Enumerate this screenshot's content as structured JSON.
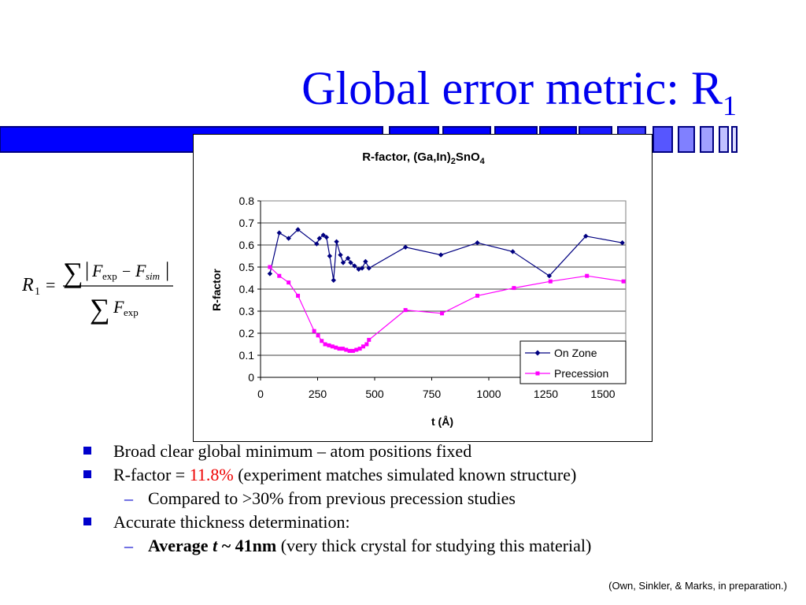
{
  "slide": {
    "title_main": "Global error metric: R",
    "title_sub": "1"
  },
  "formula": {
    "lhs_symbol": "R",
    "lhs_sub": "1",
    "equals": "=",
    "sum_symbol": "∑",
    "f_symbol": "F",
    "sub_exp": "exp",
    "sub_sim": "sim",
    "minus": "−",
    "bar": "|"
  },
  "chart_data": {
    "type": "line",
    "title_main": "R-factor, (Ga,In)",
    "title_sub1": "2",
    "title_mid": "SnO",
    "title_sub2": "4",
    "xlabel": "t (Å)",
    "ylabel": "R-factor",
    "xlim": [
      0,
      1600
    ],
    "ylim": [
      0,
      0.8
    ],
    "xticks": [
      0,
      250,
      500,
      750,
      1000,
      1250,
      1500
    ],
    "yticks": [
      0,
      0.1,
      0.2,
      0.3,
      0.4,
      0.5,
      0.6,
      0.7,
      0.8
    ],
    "grid": "horizontal",
    "legend": "bottom-right",
    "series": [
      {
        "name": "On Zone",
        "color": "#000080",
        "marker": "diamond",
        "points": [
          [
            41,
            0.47
          ],
          [
            82,
            0.655
          ],
          [
            123,
            0.63
          ],
          [
            164,
            0.67
          ],
          [
            246,
            0.605
          ],
          [
            258,
            0.63
          ],
          [
            275,
            0.645
          ],
          [
            289,
            0.635
          ],
          [
            303,
            0.55
          ],
          [
            320,
            0.44
          ],
          [
            333,
            0.615
          ],
          [
            350,
            0.555
          ],
          [
            362,
            0.52
          ],
          [
            383,
            0.54
          ],
          [
            395,
            0.52
          ],
          [
            412,
            0.505
          ],
          [
            430,
            0.49
          ],
          [
            445,
            0.495
          ],
          [
            460,
            0.525
          ],
          [
            475,
            0.495
          ],
          [
            635,
            0.59
          ],
          [
            790,
            0.555
          ],
          [
            950,
            0.61
          ],
          [
            1105,
            0.57
          ],
          [
            1265,
            0.46
          ],
          [
            1425,
            0.64
          ],
          [
            1585,
            0.61
          ]
        ]
      },
      {
        "name": "Precession",
        "color": "#ff00ff",
        "marker": "square",
        "points": [
          [
            41,
            0.5
          ],
          [
            82,
            0.46
          ],
          [
            123,
            0.43
          ],
          [
            164,
            0.37
          ],
          [
            235,
            0.21
          ],
          [
            252,
            0.19
          ],
          [
            268,
            0.165
          ],
          [
            283,
            0.15
          ],
          [
            300,
            0.145
          ],
          [
            315,
            0.14
          ],
          [
            330,
            0.135
          ],
          [
            345,
            0.13
          ],
          [
            360,
            0.13
          ],
          [
            375,
            0.125
          ],
          [
            390,
            0.12
          ],
          [
            405,
            0.12
          ],
          [
            420,
            0.125
          ],
          [
            435,
            0.13
          ],
          [
            450,
            0.14
          ],
          [
            465,
            0.15
          ],
          [
            475,
            0.17
          ],
          [
            635,
            0.305
          ],
          [
            795,
            0.29
          ],
          [
            950,
            0.37
          ],
          [
            1110,
            0.405
          ],
          [
            1270,
            0.435
          ],
          [
            1430,
            0.46
          ],
          [
            1590,
            0.435
          ]
        ]
      }
    ]
  },
  "bullets": [
    {
      "text": "Broad clear global minimum – atom positions fixed"
    },
    {
      "prefix": "R-factor = ",
      "highlight": "11.8%",
      "suffix": " (experiment matches simulated known structure)",
      "highlight_color": "#ee0000"
    },
    {
      "text": "Compared to >30% from previous precession studies"
    },
    {
      "text": "Accurate thickness determination:"
    },
    {
      "bold_prefix": "Average ",
      "bold_var": "t",
      "bold_suffix": " ~ 41nm",
      "rest": " (very thick crystal for studying this material)"
    }
  ],
  "bullet_marks": {
    "square": "■",
    "dash": "–"
  },
  "citation": "(Own, Sinkler, & Marks, in preparation.)",
  "colors": {
    "title": "#0000ee",
    "accent_blue": "#0000cc",
    "bar_fill": "#0000ff"
  }
}
